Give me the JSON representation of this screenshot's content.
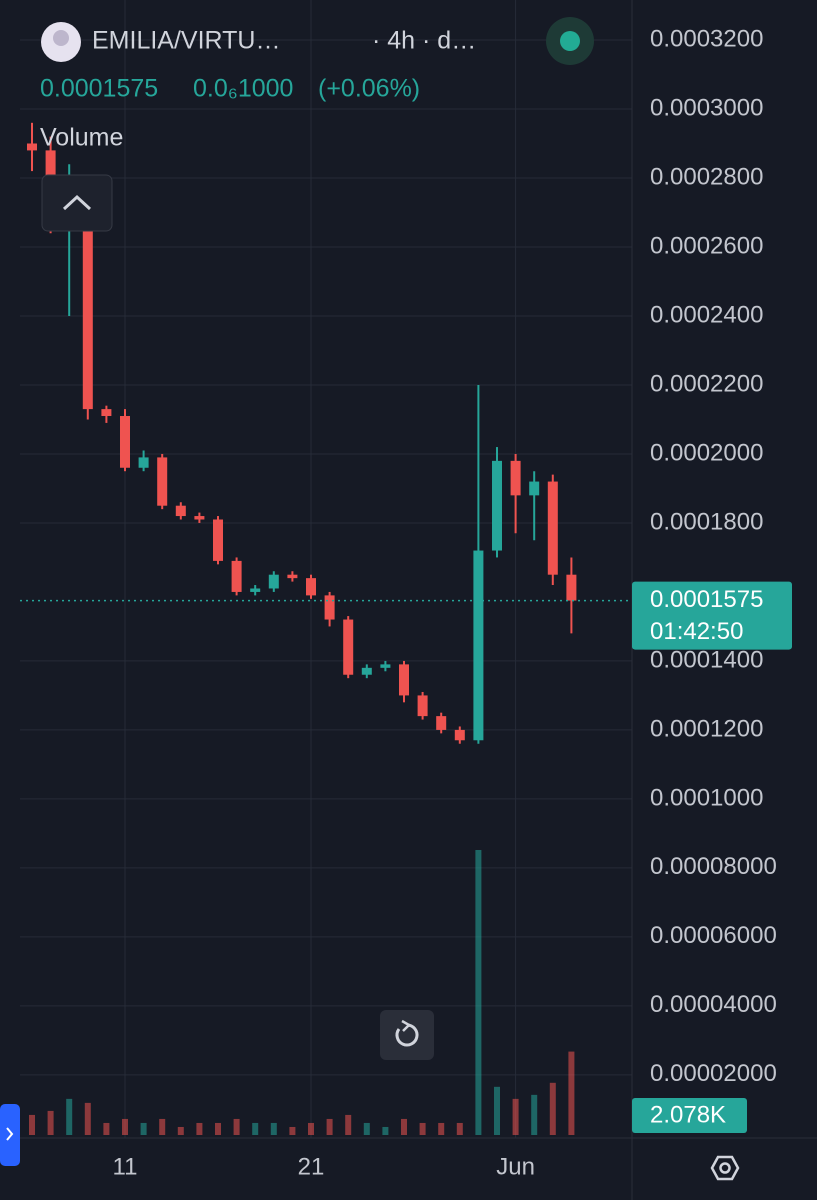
{
  "header": {
    "pair": "EMILIA/VIRTU…",
    "interval": "· 4h · d…",
    "price": "0.0001575",
    "change": "0.0₆1000",
    "change_pct": "(+0.06%)"
  },
  "chart_data": {
    "type": "candlestick",
    "categories": [
      null,
      null,
      null,
      null,
      null,
      "11",
      null,
      null,
      null,
      null,
      null,
      null,
      null,
      null,
      null,
      "21",
      null,
      null,
      null,
      null,
      null,
      null,
      null,
      null,
      null,
      null,
      "Jun",
      null,
      null,
      null
    ],
    "open": [
      0.00029,
      0.000288,
      0.000268,
      0.00027,
      0.000213,
      0.000211,
      0.000196,
      0.000199,
      0.000185,
      0.000182,
      0.000181,
      0.000169,
      0.00016,
      0.000161,
      0.000165,
      0.000164,
      0.000159,
      0.000152,
      0.000136,
      0.000138,
      0.000139,
      0.00013,
      0.000124,
      0.00012,
      0.000117,
      0.000172,
      0.000198,
      0.000188,
      0.000192,
      0.000165
    ],
    "high": [
      0.000296,
      0.000292,
      0.000284,
      0.000272,
      0.000214,
      0.000213,
      0.000201,
      0.0002,
      0.000186,
      0.000183,
      0.000182,
      0.00017,
      0.000162,
      0.000166,
      0.000166,
      0.000165,
      0.00016,
      0.000153,
      0.000139,
      0.00014,
      0.00014,
      0.000131,
      0.000125,
      0.000121,
      0.00022,
      0.000202,
      0.0002,
      0.000195,
      0.000194,
      0.00017
    ],
    "low": [
      0.000282,
      0.000264,
      0.00024,
      0.00021,
      0.000209,
      0.000195,
      0.000195,
      0.000184,
      0.000181,
      0.00018,
      0.000168,
      0.000159,
      0.000159,
      0.00016,
      0.000163,
      0.000158,
      0.00015,
      0.000135,
      0.000135,
      0.000137,
      0.000128,
      0.000123,
      0.000119,
      0.000116,
      0.000116,
      0.00017,
      0.000177,
      0.000175,
      0.000162,
      0.000148
    ],
    "close": [
      0.000288,
      0.000268,
      0.00027,
      0.000213,
      0.000211,
      0.000196,
      0.000199,
      0.000185,
      0.000182,
      0.000181,
      0.000169,
      0.00016,
      0.000161,
      0.000165,
      0.000164,
      0.000159,
      0.000152,
      0.000136,
      0.000138,
      0.000139,
      0.00013,
      0.000124,
      0.00012,
      0.000117,
      0.000172,
      0.000198,
      0.000188,
      0.000192,
      0.000165,
      0.0001575
    ],
    "volume": {
      "name": "Volume",
      "values": [
        0.5,
        0.6,
        0.9,
        0.8,
        0.3,
        0.4,
        0.3,
        0.4,
        0.2,
        0.3,
        0.3,
        0.4,
        0.3,
        0.3,
        0.2,
        0.3,
        0.4,
        0.5,
        0.3,
        0.2,
        0.4,
        0.3,
        0.3,
        0.3,
        7.1,
        1.2,
        0.9,
        1.0,
        1.3,
        2.078
      ],
      "last_value_label": "2.078K"
    },
    "ylim": [
      1.7e-06,
      0.0003316
    ],
    "yticks": [
      {
        "value": 0.00032,
        "label": "0.0003200"
      },
      {
        "value": 0.0003,
        "label": "0.0003000"
      },
      {
        "value": 0.00028,
        "label": "0.0002800"
      },
      {
        "value": 0.00026,
        "label": "0.0002600"
      },
      {
        "value": 0.00024,
        "label": "0.0002400"
      },
      {
        "value": 0.00022,
        "label": "0.0002200"
      },
      {
        "value": 0.0002,
        "label": "0.0002000"
      },
      {
        "value": 0.00018,
        "label": "0.0001800"
      },
      {
        "value": 0.00014,
        "label": "0.0001400"
      },
      {
        "value": 0.00012,
        "label": "0.0001200"
      },
      {
        "value": 0.0001,
        "label": "0.0001000"
      },
      {
        "value": 8e-05,
        "label": "0.00008000"
      },
      {
        "value": 6e-05,
        "label": "0.00006000"
      },
      {
        "value": 4e-05,
        "label": "0.00004000"
      },
      {
        "value": 2e-05,
        "label": "0.00002000"
      }
    ],
    "last_price": {
      "value": 0.0001575,
      "label": "0.0001575"
    },
    "countdown": "01:42:50",
    "up_color": "#26a69a",
    "down_color": "#ef5350",
    "grid": true
  }
}
